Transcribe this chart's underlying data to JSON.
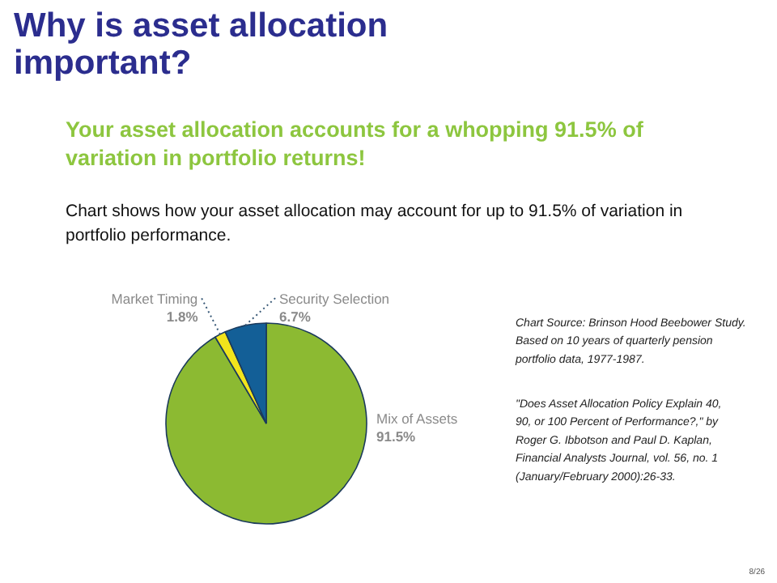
{
  "chart_data": {
    "type": "pie",
    "title": "Why is asset allocation important?",
    "subtitle": "Your asset allocation accounts for a whopping 91.5% of variation in portfolio returns!",
    "categories": [
      "Mix of Assets",
      "Market Timing",
      "Security Selection"
    ],
    "values": [
      91.5,
      1.8,
      6.7
    ],
    "value_labels": [
      "91.5%",
      "1.8%",
      "6.7%"
    ],
    "colors": [
      "#8cba32",
      "#f2e41c",
      "#135f97"
    ],
    "annotations": [
      "Chart shows how your asset allocation may account for up to 91.5% of variation in portfolio performance.",
      "Chart Source: Brinson Hood Beebower Study. Based on 10 years of quarterly pension portfolio data, 1977-1987.",
      "\"Does Asset Allocation Policy Explain 40, 90, or 100 Percent of Performance?,\" by Roger G. Ibbotson and Paul D. Kaplan, Financial Analysts Journal, vol. 56, no. 1 (January/February 2000):26-33.",
      "8/26"
    ]
  }
}
